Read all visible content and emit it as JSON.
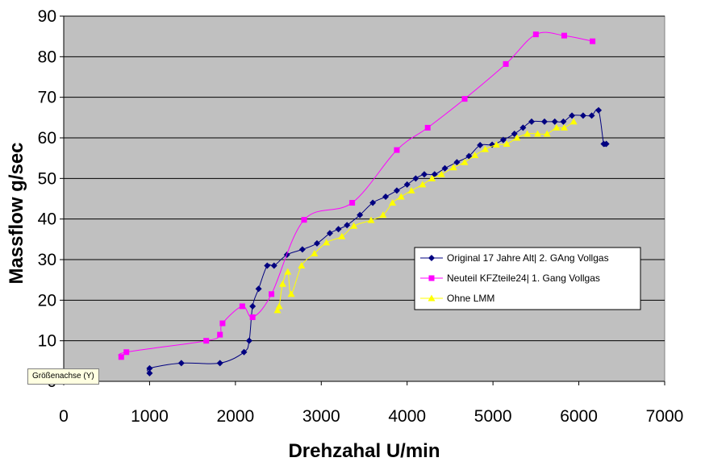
{
  "chart_data": {
    "type": "line",
    "xlabel": "Drehzahal U/min",
    "ylabel": "Massflow g/sec",
    "xlim": [
      0,
      7000
    ],
    "ylim": [
      0,
      90
    ],
    "x_ticks": [
      0,
      1000,
      2000,
      3000,
      4000,
      5000,
      6000,
      7000
    ],
    "y_ticks": [
      0,
      10,
      20,
      30,
      40,
      50,
      60,
      70,
      80,
      90
    ],
    "grid": "horizontal",
    "plot_background": "#c0c0c0",
    "legend_position": "right",
    "tooltip": "Größenachse (Y)",
    "series": [
      {
        "name": "Original 17 Jahre Alt| 2. GAng Vollgas",
        "color": "#000080",
        "marker": "diamond",
        "points": [
          [
            1000,
            2
          ],
          [
            1000,
            3.2
          ],
          [
            1370,
            4.5
          ],
          [
            1820,
            4.5
          ],
          [
            2100,
            7.2
          ],
          [
            2160,
            10
          ],
          [
            2200,
            18.5
          ],
          [
            2270,
            22.8
          ],
          [
            2370,
            28.5
          ],
          [
            2450,
            28.5
          ],
          [
            2600,
            31.2
          ],
          [
            2780,
            32.5
          ],
          [
            2950,
            34
          ],
          [
            3100,
            36.5
          ],
          [
            3200,
            37.5
          ],
          [
            3300,
            38.5
          ],
          [
            3450,
            41
          ],
          [
            3600,
            44
          ],
          [
            3750,
            45.5
          ],
          [
            3880,
            47
          ],
          [
            4000,
            48.5
          ],
          [
            4100,
            50
          ],
          [
            4200,
            51
          ],
          [
            4320,
            51
          ],
          [
            4440,
            52.5
          ],
          [
            4580,
            54
          ],
          [
            4720,
            55.5
          ],
          [
            4850,
            58.2
          ],
          [
            4990,
            58.3
          ],
          [
            5120,
            59.5
          ],
          [
            5250,
            61
          ],
          [
            5350,
            62.5
          ],
          [
            5450,
            64
          ],
          [
            5600,
            64
          ],
          [
            5720,
            64
          ],
          [
            5820,
            64
          ],
          [
            5920,
            65.5
          ],
          [
            6050,
            65.5
          ],
          [
            6150,
            65.5
          ],
          [
            6230,
            66.8
          ],
          [
            6290,
            58.5
          ],
          [
            6320,
            58.5
          ]
        ]
      },
      {
        "name": "Neuteil KFZteile24| 1. Gang Vollgas",
        "color": "#ff00ff",
        "marker": "square",
        "points": [
          [
            670,
            6
          ],
          [
            730,
            7.2
          ],
          [
            1660,
            10
          ],
          [
            1820,
            11.5
          ],
          [
            1850,
            14.3
          ],
          [
            2080,
            18.5
          ],
          [
            2200,
            15.8
          ],
          [
            2420,
            21.5
          ],
          [
            2800,
            39.8
          ],
          [
            3360,
            44
          ],
          [
            3880,
            57
          ],
          [
            4240,
            62.5
          ],
          [
            4670,
            69.6
          ],
          [
            5150,
            78.2
          ],
          [
            5500,
            85.5
          ],
          [
            5830,
            85.2
          ],
          [
            6160,
            83.8
          ]
        ]
      },
      {
        "name": "Ohne LMM",
        "color": "#ffff00",
        "marker": "triangle",
        "points": [
          [
            2490,
            17.5
          ],
          [
            2510,
            18.5
          ],
          [
            2550,
            24
          ],
          [
            2610,
            27
          ],
          [
            2650,
            21.5
          ],
          [
            2770,
            28.5
          ],
          [
            2920,
            31.5
          ],
          [
            3060,
            34.2
          ],
          [
            3240,
            35.7
          ],
          [
            3380,
            38.3
          ],
          [
            3580,
            39.7
          ],
          [
            3720,
            41
          ],
          [
            3830,
            44
          ],
          [
            3930,
            45.5
          ],
          [
            4050,
            47
          ],
          [
            4180,
            48.5
          ],
          [
            4290,
            50
          ],
          [
            4400,
            51
          ],
          [
            4540,
            52.7
          ],
          [
            4670,
            54
          ],
          [
            4790,
            55.7
          ],
          [
            4910,
            57.2
          ],
          [
            5040,
            58.3
          ],
          [
            5160,
            58.5
          ],
          [
            5280,
            60
          ],
          [
            5400,
            61
          ],
          [
            5520,
            61
          ],
          [
            5630,
            61
          ],
          [
            5740,
            62.5
          ],
          [
            5830,
            62.5
          ],
          [
            5940,
            64
          ]
        ]
      }
    ]
  }
}
